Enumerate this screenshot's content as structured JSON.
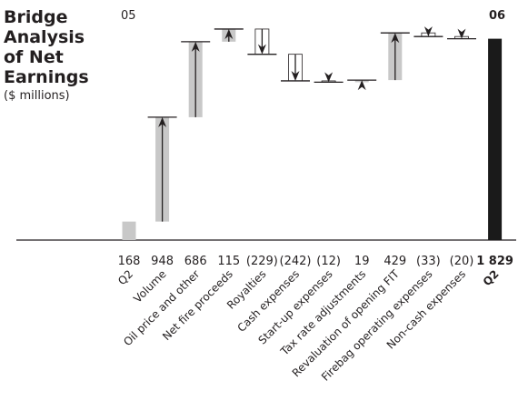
{
  "chart_data": {
    "type": "bar",
    "subtype": "waterfall",
    "title": "Bridge Analysis of Net Earnings",
    "unit": "($ millions)",
    "start_period": "05",
    "end_period": "06",
    "categories": [
      "Q2",
      "Volume",
      "Oil price and other",
      "Net fire proceeds",
      "Royalties",
      "Cash expenses",
      "Start-up expenses",
      "Tax rate adjustments",
      "Revaluation of opening FIT",
      "Firebag operating expenses",
      "Non-cash expenses",
      "Q2"
    ],
    "value_labels": [
      "168",
      "948",
      "686",
      "115",
      "(229)",
      "(242)",
      "(12)",
      "19",
      "429",
      "(33)",
      "(20)",
      "1 829"
    ],
    "values": [
      168,
      948,
      686,
      115,
      -229,
      -242,
      -12,
      19,
      429,
      -33,
      -20,
      1829
    ],
    "measure": [
      "total",
      "relative",
      "relative",
      "relative",
      "relative",
      "relative",
      "relative",
      "relative",
      "relative",
      "relative",
      "relative",
      "total"
    ],
    "ylim": [
      0,
      1900
    ],
    "colors": {
      "bar": "#c8c8c8",
      "total": "#1a1a1a",
      "ink": "#231f20"
    }
  }
}
